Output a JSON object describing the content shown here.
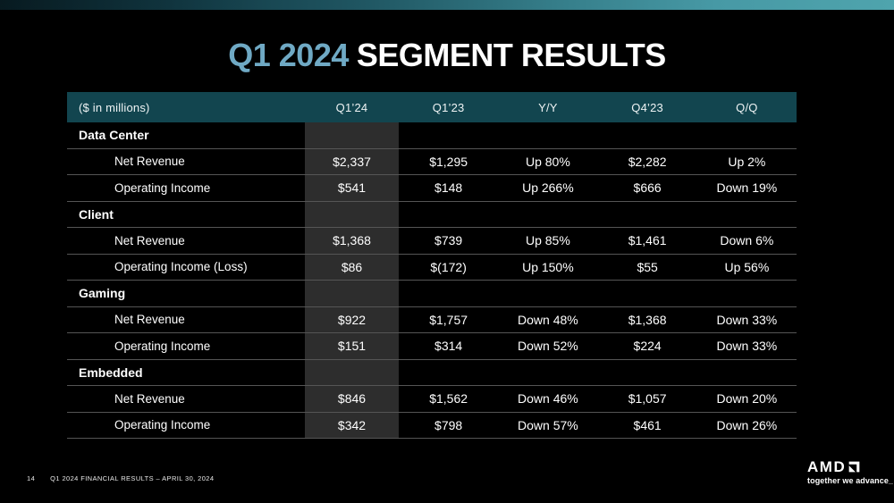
{
  "slide": {
    "title": {
      "highlight": "Q1 2024",
      "rest": "SEGMENT RESULTS"
    },
    "footer": {
      "page_number": "14",
      "text": "Q1 2024 FINANCIAL RESULTS – APRIL 30, 2024"
    },
    "logo": {
      "brand": "AMD",
      "tagline": "together we advance_"
    }
  },
  "table": {
    "columns": [
      "($ in millions)",
      "Q1’24",
      "Q1’23",
      "Y/Y",
      "Q4’23",
      "Q/Q"
    ],
    "highlighted_column": "Q1’24",
    "rows": [
      {
        "type": "group",
        "label": "Data Center",
        "values": [
          "",
          "",
          "",
          "",
          ""
        ]
      },
      {
        "type": "data",
        "label": "Net Revenue",
        "values": [
          "$2,337",
          "$1,295",
          "Up 80%",
          "$2,282",
          "Up 2%"
        ]
      },
      {
        "type": "data",
        "label": "Operating Income",
        "values": [
          "$541",
          "$148",
          "Up 266%",
          "$666",
          "Down 19%"
        ]
      },
      {
        "type": "group",
        "label": "Client",
        "values": [
          "",
          "",
          "",
          "",
          ""
        ]
      },
      {
        "type": "data",
        "label": "Net Revenue",
        "values": [
          "$1,368",
          "$739",
          "Up 85%",
          "$1,461",
          "Down 6%"
        ]
      },
      {
        "type": "data",
        "label": "Operating Income (Loss)",
        "values": [
          "$86",
          "$(172)",
          "Up 150%",
          "$55",
          "Up 56%"
        ]
      },
      {
        "type": "group",
        "label": "Gaming",
        "values": [
          "",
          "",
          "",
          "",
          ""
        ]
      },
      {
        "type": "data",
        "label": "Net Revenue",
        "values": [
          "$922",
          "$1,757",
          "Down 48%",
          "$1,368",
          "Down 33%"
        ]
      },
      {
        "type": "data",
        "label": "Operating Income",
        "values": [
          "$151",
          "$314",
          "Down 52%",
          "$224",
          "Down 33%"
        ]
      },
      {
        "type": "group",
        "label": "Embedded",
        "values": [
          "",
          "",
          "",
          "",
          ""
        ]
      },
      {
        "type": "data",
        "label": "Net Revenue",
        "values": [
          "$846",
          "$1,562",
          "Down 46%",
          "$1,057",
          "Down 20%"
        ]
      },
      {
        "type": "data",
        "label": "Operating Income",
        "values": [
          "$342",
          "$798",
          "Down 57%",
          "$461",
          "Down 26%"
        ]
      }
    ]
  },
  "colors": {
    "background": "#000000",
    "header_teal": "#12454f",
    "title_blue": "#6fa9c4",
    "column_highlight": "#2d2d2d",
    "row_divider": "#555555",
    "topbar_gradient_start": "#0a232b",
    "topbar_gradient_end": "#4fa4ad"
  }
}
